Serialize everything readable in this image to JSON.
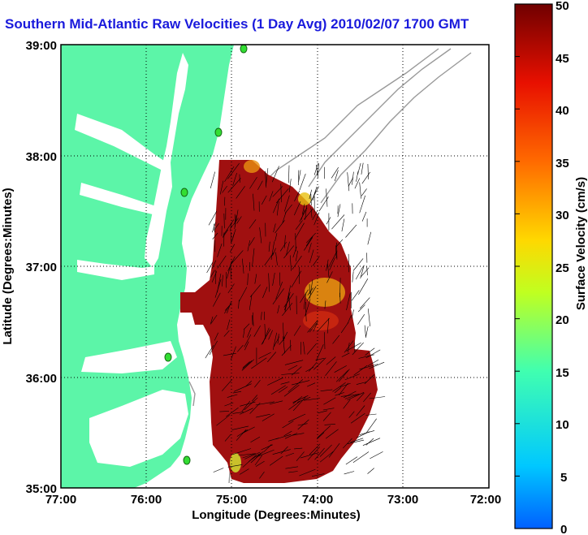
{
  "title": "Southern Mid-Atlantic Raw Velocities (1 Day Avg) 2010/02/07 1700 GMT",
  "xlabel": "Longitude (Degrees:Minutes)",
  "ylabel": "Latitude (Degrees:Minutes)",
  "x_ticks": [
    "77:00",
    "76:00",
    "75:00",
    "74:00",
    "73:00",
    "72:00"
  ],
  "y_ticks": [
    "39:00",
    "38:00",
    "37:00",
    "36:00",
    "35:00"
  ],
  "colorbar": {
    "label": "Surface Velocity (cm/s)",
    "ticks": [
      "50",
      "45",
      "40",
      "35",
      "30",
      "25",
      "20",
      "15",
      "10",
      "5",
      "0"
    ],
    "range": [
      0,
      50
    ]
  },
  "colors": {
    "land": "#5cf5a8",
    "water": "#ffffff",
    "velocity_field": "#a01010",
    "title": "#1a1adc",
    "bathymetry": "#999999",
    "station": "#33dd33"
  }
}
